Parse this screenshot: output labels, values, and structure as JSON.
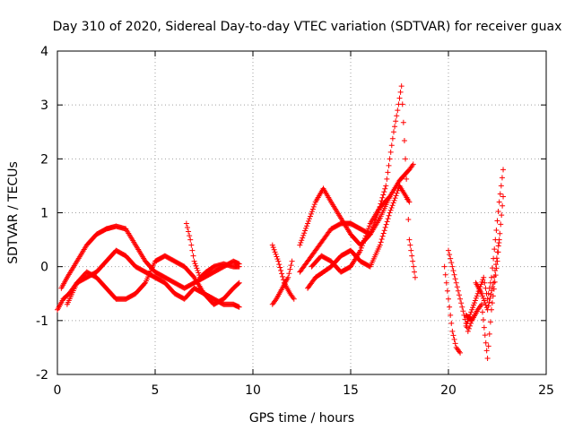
{
  "chart_data": {
    "type": "scatter",
    "title": "Day 310 of 2020, Sidereal Day-to-day VTEC variation (SDTVAR) for receiver guax",
    "xlabel": "GPS time / hours",
    "ylabel": "SDTVAR / TECUs",
    "xlim": [
      0,
      25
    ],
    "ylim": [
      -2,
      4
    ],
    "xticks": [
      0,
      5,
      10,
      15,
      20,
      25
    ],
    "yticks": [
      -2,
      -1,
      0,
      1,
      2,
      3,
      4
    ],
    "grid": true,
    "marker": "+",
    "color": "#ff0000",
    "series": [
      {
        "name": "s1",
        "x": [
          0.0,
          0.3,
          0.6,
          1.0,
          1.5,
          2.0,
          2.5,
          3.0,
          3.5,
          4.0,
          4.5,
          5.0,
          5.5,
          6.0,
          6.5,
          7.0,
          7.5,
          8.0,
          8.5,
          9.0,
          9.3
        ],
        "y": [
          -0.8,
          -0.6,
          -0.5,
          -0.3,
          -0.2,
          -0.1,
          0.1,
          0.3,
          0.2,
          0.0,
          -0.1,
          -0.2,
          -0.3,
          -0.5,
          -0.6,
          -0.4,
          -0.5,
          -0.6,
          -0.7,
          -0.7,
          -0.75
        ]
      },
      {
        "name": "s2",
        "x": [
          0.2,
          0.5,
          1.0,
          1.5,
          2.0,
          2.5,
          3.0,
          3.5,
          4.0,
          4.5,
          5.0,
          5.5,
          6.0,
          6.5,
          7.0,
          7.5,
          8.0,
          8.5,
          9.0,
          9.3
        ],
        "y": [
          -0.4,
          -0.2,
          0.1,
          0.4,
          0.6,
          0.7,
          0.75,
          0.7,
          0.4,
          0.1,
          -0.1,
          -0.2,
          -0.3,
          -0.4,
          -0.3,
          -0.2,
          -0.1,
          0.0,
          0.1,
          0.05
        ]
      },
      {
        "name": "s3",
        "x": [
          0.5,
          1.0,
          1.5,
          2.0,
          2.5,
          3.0,
          3.5,
          4.0,
          4.5,
          5.0,
          5.5,
          6.0,
          6.5,
          7.0,
          7.5,
          8.0,
          8.5,
          9.0,
          9.3
        ],
        "y": [
          -0.7,
          -0.3,
          -0.1,
          -0.2,
          -0.4,
          -0.6,
          -0.6,
          -0.5,
          -0.3,
          0.1,
          0.2,
          0.1,
          0.0,
          -0.2,
          -0.5,
          -0.7,
          -0.6,
          -0.4,
          -0.3
        ]
      },
      {
        "name": "s4",
        "x": [
          6.6,
          6.8,
          7.0,
          7.3,
          7.6,
          8.0,
          8.5,
          9.0,
          9.3
        ],
        "y": [
          0.8,
          0.5,
          0.1,
          -0.2,
          -0.1,
          0.0,
          0.05,
          0.0,
          0.0
        ]
      },
      {
        "name": "s5",
        "x": [
          11.0,
          11.3,
          11.6,
          11.9,
          12.1
        ],
        "y": [
          0.4,
          0.1,
          -0.3,
          -0.5,
          -0.6
        ]
      },
      {
        "name": "s6",
        "x": [
          11.0,
          11.2,
          11.5,
          11.8,
          12.0
        ],
        "y": [
          -0.7,
          -0.6,
          -0.4,
          -0.2,
          0.1
        ]
      },
      {
        "name": "s7",
        "x": [
          12.4,
          12.8,
          13.2,
          13.6,
          14.0,
          14.5,
          15.0,
          15.5,
          16.0,
          16.4,
          16.8,
          17.0,
          17.2,
          17.4,
          17.6,
          17.8,
          18.0,
          18.3
        ],
        "y": [
          0.4,
          0.8,
          1.2,
          1.45,
          1.2,
          0.9,
          0.6,
          0.4,
          0.6,
          1.0,
          1.5,
          2.0,
          2.5,
          2.9,
          3.35,
          2.0,
          0.5,
          -0.2
        ]
      },
      {
        "name": "s8",
        "x": [
          12.4,
          12.8,
          13.2,
          13.6,
          14.0,
          14.5,
          15.0,
          15.5,
          16.0,
          16.5,
          17.0,
          17.5,
          18.0,
          18.2
        ],
        "y": [
          -0.1,
          0.1,
          0.3,
          0.5,
          0.7,
          0.8,
          0.8,
          0.7,
          0.6,
          0.9,
          1.3,
          1.6,
          1.8,
          1.9
        ]
      },
      {
        "name": "s9",
        "x": [
          12.8,
          13.2,
          13.6,
          14.0,
          14.5,
          15.0,
          15.5,
          16.0,
          16.5,
          17.0,
          17.5,
          18.0
        ],
        "y": [
          -0.4,
          -0.2,
          -0.1,
          0.0,
          0.2,
          0.3,
          0.1,
          0.0,
          0.4,
          1.0,
          1.5,
          1.2
        ]
      },
      {
        "name": "s10",
        "x": [
          13.0,
          13.5,
          14.0,
          14.5,
          15.0,
          15.5,
          16.0,
          16.5,
          17.0
        ],
        "y": [
          0.0,
          0.2,
          0.1,
          -0.1,
          0.0,
          0.3,
          0.8,
          1.1,
          1.3
        ]
      },
      {
        "name": "s11",
        "x": [
          19.8,
          20.0,
          20.2,
          20.4,
          20.6
        ],
        "y": [
          0.0,
          -0.6,
          -1.2,
          -1.5,
          -1.6
        ]
      },
      {
        "name": "s12",
        "x": [
          20.0,
          20.2,
          20.4,
          20.6,
          20.8,
          21.0,
          21.2
        ],
        "y": [
          0.3,
          0.0,
          -0.3,
          -0.6,
          -0.9,
          -1.2,
          -1.0
        ]
      },
      {
        "name": "s13",
        "x": [
          20.9,
          21.2,
          21.5,
          21.8,
          22.0,
          22.2,
          22.4,
          22.6,
          22.8
        ],
        "y": [
          -1.1,
          -0.8,
          -0.5,
          -0.2,
          -0.6,
          -0.2,
          0.5,
          1.2,
          1.8
        ]
      },
      {
        "name": "s14",
        "x": [
          20.9,
          21.2,
          21.5,
          21.7,
          22.0,
          22.2,
          22.5,
          22.8
        ],
        "y": [
          -0.9,
          -1.0,
          -0.8,
          -0.7,
          -1.7,
          -0.8,
          0.1,
          1.3
        ]
      },
      {
        "name": "s15",
        "x": [
          21.4,
          21.7,
          22.0,
          22.3,
          22.6
        ],
        "y": [
          -0.3,
          -0.5,
          -0.8,
          -0.3,
          0.5
        ]
      }
    ]
  }
}
